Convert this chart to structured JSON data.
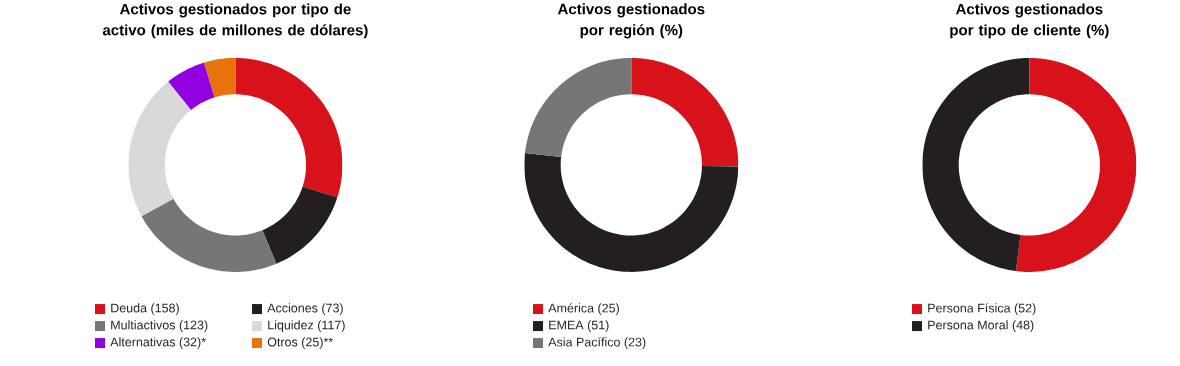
{
  "chart_data": [
    {
      "type": "donut",
      "title": "Activos gestionados por tipo de activo (miles de millones de dólares)",
      "categories": [
        "Deuda (158)",
        "Acciones (73)",
        "Multiactivos (123)",
        "Liquidez (117)",
        "Alternativas (32)*",
        "Otros (25)**"
      ],
      "values": [
        158,
        73,
        123,
        117,
        32,
        25
      ],
      "colors": [
        "#d7121a",
        "#231f20",
        "#767676",
        "#d9d9d9",
        "#9000e0",
        "#e8730c"
      ],
      "legend": "bottom"
    },
    {
      "type": "donut",
      "title": "Activos gestionados por región (%)",
      "categories": [
        "América (25)",
        "EMEA (51)",
        "Asia Pacífico (23)"
      ],
      "values": [
        25,
        51,
        23
      ],
      "colors": [
        "#d7121a",
        "#231f20",
        "#767676"
      ],
      "legend": "bottom"
    },
    {
      "type": "donut",
      "title": "Activos gestionados por tipo de cliente (%)",
      "categories": [
        "Persona Física (52)",
        "Persona Moral (48)"
      ],
      "values": [
        52,
        48
      ],
      "colors": [
        "#d7121a",
        "#231f20"
      ],
      "legend": "bottom"
    }
  ]
}
